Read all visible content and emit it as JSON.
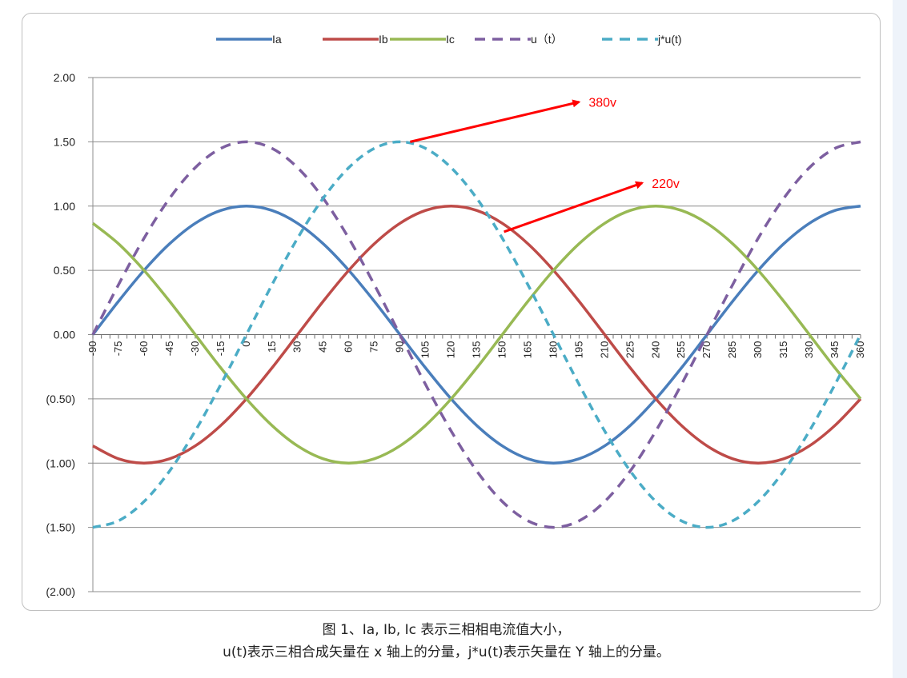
{
  "chart_data": {
    "type": "line",
    "x": [
      -90,
      -75,
      -60,
      -45,
      -30,
      -15,
      0,
      15,
      30,
      45,
      60,
      75,
      90,
      105,
      120,
      135,
      150,
      165,
      180,
      195,
      210,
      225,
      240,
      255,
      270,
      285,
      300,
      315,
      330,
      345,
      360
    ],
    "x_tick_labels": [
      "-90",
      "-75",
      "-60",
      "-45",
      "-30",
      "-15",
      "0",
      "15",
      "30",
      "45",
      "60",
      "75",
      "90",
      "105",
      "120",
      "135",
      "150",
      "165",
      "180",
      "195",
      "210",
      "225",
      "240",
      "255",
      "270",
      "285",
      "300",
      "315",
      "330",
      "345",
      "360"
    ],
    "ylim": [
      -2,
      2
    ],
    "y_tick_labels": [
      "2.00",
      "1.50",
      "1.00",
      "0.50",
      "0.00",
      "(0.50)",
      "(1.00)",
      "(1.50)",
      "(2.00)"
    ],
    "grid": "horizontal",
    "legend_position": "top",
    "series": [
      {
        "name": "Ia",
        "color": "#4a7ebb",
        "style": "solid",
        "values": [
          0.0,
          0.259,
          0.5,
          0.707,
          0.866,
          0.966,
          1.0,
          0.966,
          0.866,
          0.707,
          0.5,
          0.259,
          0.0,
          -0.259,
          -0.5,
          -0.707,
          -0.866,
          -0.966,
          -1.0,
          -0.966,
          -0.866,
          -0.707,
          -0.5,
          -0.259,
          0.0,
          0.259,
          0.5,
          0.707,
          0.866,
          0.966,
          1.0
        ]
      },
      {
        "name": "Ib",
        "color": "#be4b48",
        "style": "solid",
        "values": [
          -0.866,
          -0.966,
          -1.0,
          -0.966,
          -0.866,
          -0.707,
          -0.5,
          -0.259,
          0.0,
          0.259,
          0.5,
          0.707,
          0.866,
          0.966,
          1.0,
          0.966,
          0.866,
          0.707,
          0.5,
          0.259,
          0.0,
          -0.259,
          -0.5,
          -0.707,
          -0.866,
          -0.966,
          -1.0,
          -0.966,
          -0.866,
          -0.707,
          -0.5
        ]
      },
      {
        "name": "Ic",
        "color": "#98b954",
        "style": "solid",
        "values": [
          0.866,
          0.707,
          0.5,
          0.259,
          0.0,
          -0.259,
          -0.5,
          -0.707,
          -0.866,
          -0.966,
          -1.0,
          -0.966,
          -0.866,
          -0.707,
          -0.5,
          -0.259,
          0.0,
          0.259,
          0.5,
          0.707,
          0.866,
          0.966,
          1.0,
          0.966,
          0.866,
          0.707,
          0.5,
          0.259,
          0.0,
          -0.259,
          -0.5
        ]
      },
      {
        "name": "u（t）",
        "color": "#7d5fa0",
        "style": "dashed",
        "values": [
          0.0,
          0.388,
          0.75,
          1.061,
          1.299,
          1.449,
          1.5,
          1.449,
          1.299,
          1.061,
          0.75,
          0.388,
          0.0,
          -0.388,
          -0.75,
          -1.061,
          -1.299,
          -1.449,
          -1.5,
          -1.449,
          -1.299,
          -1.061,
          -0.75,
          -0.388,
          0.0,
          0.388,
          0.75,
          1.061,
          1.299,
          1.449,
          1.5
        ]
      },
      {
        "name": "j*u(t)",
        "color": "#4bacc6",
        "style": "dashed",
        "values": [
          -1.5,
          -1.449,
          -1.299,
          -1.061,
          -0.75,
          -0.388,
          0.0,
          0.388,
          0.75,
          1.061,
          1.299,
          1.449,
          1.5,
          1.449,
          1.299,
          1.061,
          0.75,
          0.388,
          0.0,
          -0.388,
          -0.75,
          -1.061,
          -1.299,
          -1.449,
          -1.5,
          -1.449,
          -1.299,
          -1.061,
          -0.75,
          -0.388,
          0.0
        ]
      }
    ],
    "annotations": [
      {
        "text": "380v",
        "color": "#ff0000",
        "from": [
          96,
          1.5
        ],
        "to": [
          195,
          1.81
        ]
      },
      {
        "text": "220v",
        "color": "#ff0000",
        "from": [
          151,
          0.8
        ],
        "to": [
          232,
          1.18
        ]
      }
    ]
  },
  "caption": {
    "line1": "图 1、Ia, Ib, Ic 表示三相相电流值大小，",
    "line2": "u(t)表示三相合成矢量在 x 轴上的分量，j*u(t)表示矢量在 Y 轴上的分量。"
  }
}
